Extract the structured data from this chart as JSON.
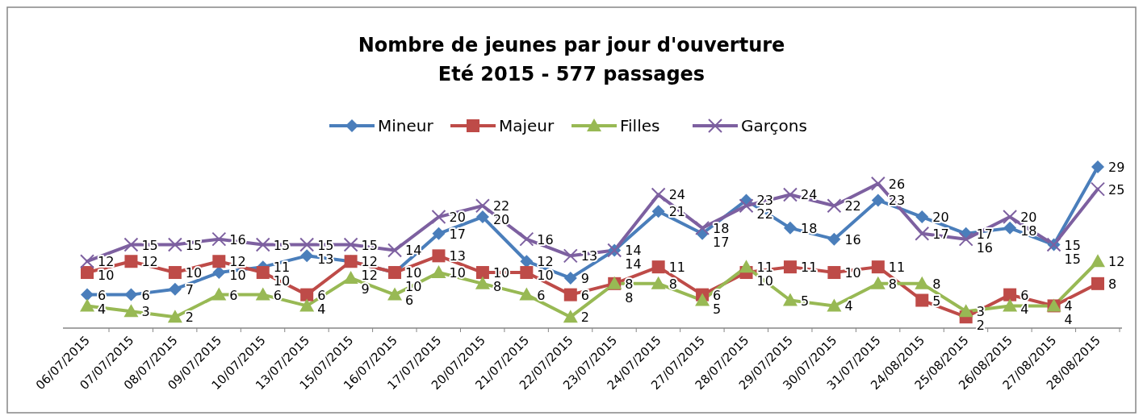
{
  "chart_data": {
    "type": "line",
    "title": "Nombre de jeunes par jour d'ouverture",
    "subtitle": "Eté 2015 - 577 passages",
    "categories": [
      "06/07/2015",
      "07/07/2015",
      "08/07/2015",
      "09/07/2015",
      "10/07/2015",
      "13/07/2015",
      "15/07/2015",
      "16/07/2015",
      "17/07/2015",
      "20/07/2015",
      "21/07/2015",
      "22/07/2015",
      "23/07/2015",
      "24/07/2015",
      "27/07/2015",
      "28/07/2015",
      "29/07/2015",
      "30/07/2015",
      "31/07/2015",
      "24/08/2015",
      "25/08/2015",
      "26/08/2015",
      "27/08/2015",
      "28/08/2015"
    ],
    "series": [
      {
        "name": "Mineur",
        "color": "#4a7ebb",
        "marker": "diamond",
        "values": [
          6,
          6,
          7,
          10,
          11,
          13,
          12,
          10,
          17,
          20,
          12,
          9,
          14,
          21,
          17,
          23,
          18,
          16,
          23,
          20,
          17,
          18,
          15,
          29
        ]
      },
      {
        "name": "Majeur",
        "color": "#be4b48",
        "marker": "square",
        "values": [
          10,
          12,
          10,
          12,
          10,
          6,
          12,
          10,
          13,
          10,
          10,
          6,
          8,
          11,
          6,
          10,
          11,
          10,
          11,
          5,
          2,
          6,
          4,
          8
        ]
      },
      {
        "name": "Filles",
        "color": "#98b954",
        "marker": "triangle",
        "values": [
          4,
          3,
          2,
          6,
          6,
          4,
          9,
          6,
          10,
          8,
          6,
          2,
          8,
          8,
          5,
          11,
          5,
          4,
          8,
          8,
          3,
          4,
          4,
          12
        ]
      },
      {
        "name": "Garçons",
        "color": "#7d60a0",
        "marker": "cross",
        "values": [
          12,
          15,
          15,
          16,
          15,
          15,
          15,
          14,
          20,
          22,
          16,
          13,
          14,
          24,
          18,
          22,
          24,
          22,
          26,
          17,
          16,
          20,
          15,
          25
        ]
      }
    ],
    "data_labels": true,
    "legend": "top"
  }
}
